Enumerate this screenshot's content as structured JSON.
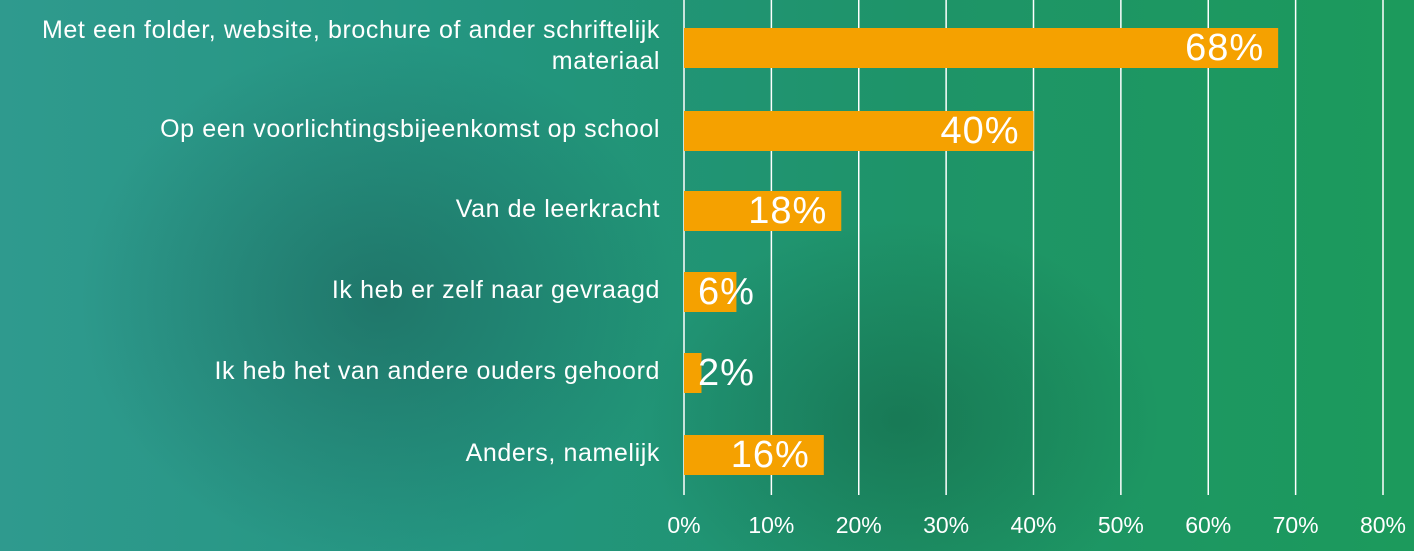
{
  "chart_data": {
    "type": "barh",
    "categories": [
      "Met een folder, website, brochure of ander schriftelijk materiaal",
      "Op een voorlichtingsbijeenkomst op school",
      "Van de leerkracht",
      "Ik heb er zelf naar gevraagd",
      "Ik heb het van andere ouders gehoord",
      "Anders, namelijk"
    ],
    "values": [
      68,
      40,
      18,
      6,
      2,
      16
    ],
    "value_labels": [
      "68%",
      "40%",
      "18%",
      "6%",
      "2%",
      "16%"
    ],
    "color": "#f5a100",
    "xlim": [
      0,
      80
    ],
    "xticks": [
      {
        "value": 0,
        "label": "0%"
      },
      {
        "value": 10,
        "label": "10%"
      },
      {
        "value": 20,
        "label": "20%"
      },
      {
        "value": 30,
        "label": "30%"
      },
      {
        "value": 40,
        "label": "40%"
      },
      {
        "value": 50,
        "label": "50%"
      },
      {
        "value": 60,
        "label": "60%"
      },
      {
        "value": 70,
        "label": "70%"
      },
      {
        "value": 80,
        "label": "80%"
      }
    ],
    "grid": true
  }
}
